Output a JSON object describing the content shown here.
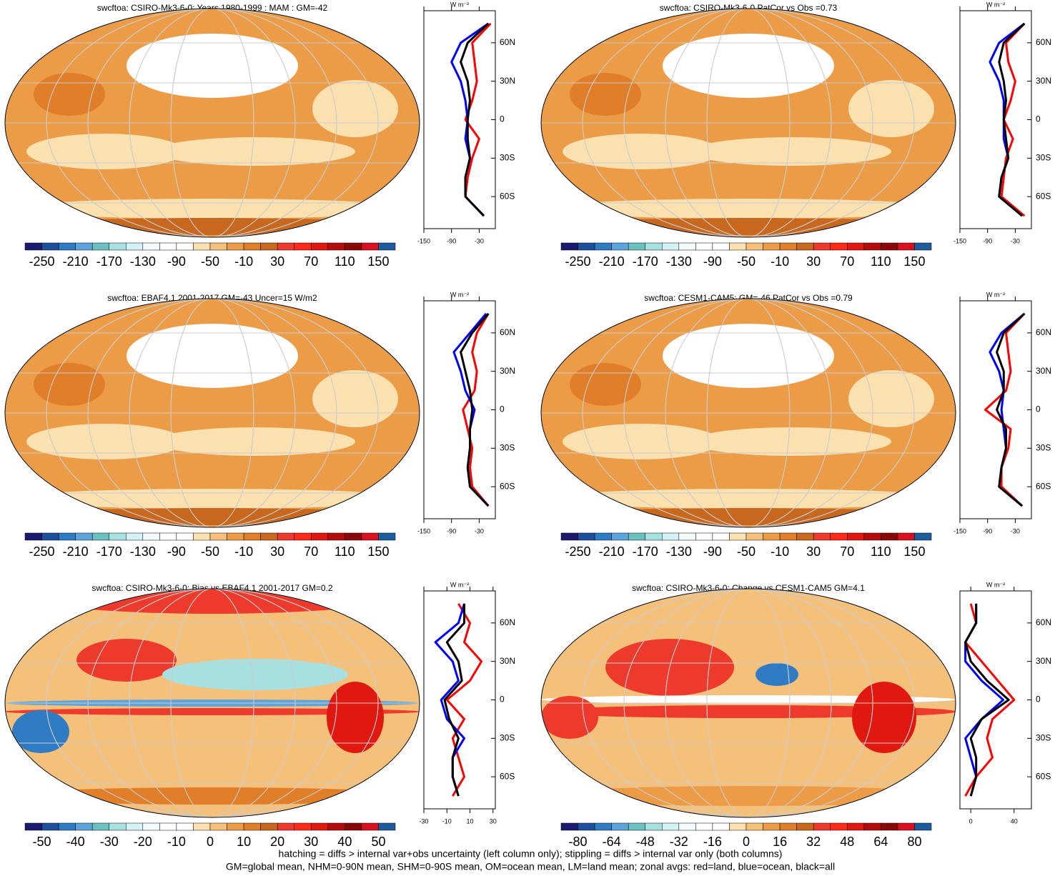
{
  "chart_data": [
    {
      "type": "map_panel",
      "title": "swcftoa: CSIRO-Mk3-6-0: Years 1980-1999 : MAM : GM=-42",
      "colorbar_ticks": [
        -250,
        -210,
        -170,
        -130,
        -90,
        -50,
        -10,
        30,
        70,
        110,
        150
      ],
      "zonal": {
        "units": "W m⁻²",
        "lat": [
          -75,
          -60,
          -45,
          -30,
          -15,
          0,
          15,
          30,
          45,
          60,
          75
        ],
        "xlim": [
          -150,
          5
        ],
        "ylim": [
          -85,
          85
        ],
        "xticks": [
          -150,
          -90,
          -30
        ],
        "yticks": [
          {
            "value": -60,
            "label": "60S"
          },
          {
            "value": -30,
            "label": "30S"
          },
          0,
          {
            "value": 30,
            "label": "30N"
          },
          {
            "value": 60,
            "label": "60N"
          }
        ],
        "series": [
          {
            "color": "#ff0000",
            "values": [
              -20,
              -60,
              -55,
              -45,
              -30,
              -60,
              -45,
              -35,
              -40,
              -45,
              -5
            ]
          },
          {
            "color": "#0000ff",
            "values": [
              -20,
              -60,
              -60,
              -50,
              -60,
              -55,
              -60,
              -70,
              -90,
              -70,
              -10
            ]
          },
          {
            "color": "#000000",
            "values": [
              -20,
              -60,
              -60,
              -50,
              -55,
              -55,
              -50,
              -55,
              -70,
              -55,
              -10
            ]
          }
        ]
      }
    },
    {
      "type": "map_panel",
      "title": "swcftoa: CSIRO-Mk3-6-0 PatCor vs Obs =0.73",
      "colorbar_ticks": [
        -250,
        -210,
        -170,
        -130,
        -90,
        -50,
        -10,
        30,
        70,
        110,
        150
      ],
      "zonal": {
        "units": "W m⁻²",
        "lat": [
          -75,
          -60,
          -45,
          -30,
          -15,
          0,
          15,
          30,
          45,
          60,
          75
        ],
        "xlim": [
          -150,
          5
        ],
        "ylim": [
          -85,
          85
        ],
        "xticks": [
          -150,
          -90,
          -30
        ],
        "yticks": [
          {
            "value": -60,
            "label": "60S"
          },
          {
            "value": -30,
            "label": "30S"
          },
          0,
          {
            "value": 30,
            "label": "30N"
          },
          {
            "value": 60,
            "label": "60N"
          }
        ],
        "series": [
          {
            "color": "#ff0000",
            "values": [
              -10,
              -60,
              -55,
              -50,
              -35,
              -55,
              -40,
              -30,
              -45,
              -50,
              -10
            ]
          },
          {
            "color": "#0000ff",
            "values": [
              -15,
              -65,
              -60,
              -45,
              -55,
              -55,
              -55,
              -65,
              -85,
              -65,
              -10
            ]
          },
          {
            "color": "#000000",
            "values": [
              -15,
              -65,
              -60,
              -45,
              -50,
              -55,
              -50,
              -55,
              -65,
              -55,
              -10
            ]
          }
        ]
      }
    },
    {
      "type": "map_panel",
      "title": "swcftoa: EBAF4.1 2001-2017 GM=-43 Uncer=15 W/m2",
      "colorbar_ticks": [
        -250,
        -210,
        -170,
        -130,
        -90,
        -50,
        -10,
        30,
        70,
        110,
        150
      ],
      "zonal": {
        "units": "W m⁻²",
        "lat": [
          -75,
          -60,
          -45,
          -30,
          -15,
          0,
          15,
          30,
          45,
          60,
          75
        ],
        "xlim": [
          -150,
          5
        ],
        "ylim": [
          -85,
          85
        ],
        "xticks": [
          -150,
          -90,
          -30
        ],
        "yticks": [
          {
            "value": -60,
            "label": "60S"
          },
          {
            "value": -30,
            "label": "30S"
          },
          0,
          {
            "value": 30,
            "label": "30N"
          },
          {
            "value": 60,
            "label": "60N"
          }
        ],
        "series": [
          {
            "color": "#ff0000",
            "values": [
              -10,
              -45,
              -50,
              -45,
              -55,
              -65,
              -40,
              -35,
              -45,
              -35,
              -10
            ]
          },
          {
            "color": "#0000ff",
            "values": [
              -10,
              -50,
              -55,
              -50,
              -50,
              -40,
              -60,
              -70,
              -85,
              -50,
              -15
            ]
          },
          {
            "color": "#000000",
            "values": [
              -10,
              -50,
              -55,
              -50,
              -50,
              -45,
              -50,
              -60,
              -70,
              -45,
              -10
            ]
          }
        ]
      }
    },
    {
      "type": "map_panel",
      "title": "swcftoa: CESM1-CAM5: GM=-46 PatCor vs Obs =0.79",
      "colorbar_ticks": [
        -250,
        -210,
        -170,
        -130,
        -90,
        -50,
        -10,
        30,
        70,
        110,
        150
      ],
      "zonal": {
        "units": "W m⁻²",
        "lat": [
          -75,
          -60,
          -45,
          -30,
          -15,
          0,
          15,
          30,
          45,
          60,
          75
        ],
        "xlim": [
          -150,
          5
        ],
        "ylim": [
          -85,
          85
        ],
        "xticks": [
          -150,
          -90,
          -30
        ],
        "yticks": [
          {
            "value": -60,
            "label": "60S"
          },
          {
            "value": -30,
            "label": "30S"
          },
          0,
          {
            "value": 30,
            "label": "30N"
          },
          {
            "value": 60,
            "label": "60N"
          }
        ],
        "series": [
          {
            "color": "#ff0000",
            "values": [
              -15,
              -60,
              -60,
              -45,
              -40,
              -95,
              -50,
              -40,
              -45,
              -50,
              -10
            ]
          },
          {
            "color": "#0000ff",
            "values": [
              -15,
              -65,
              -60,
              -50,
              -55,
              -60,
              -55,
              -65,
              -85,
              -60,
              -10
            ]
          },
          {
            "color": "#000000",
            "values": [
              -15,
              -65,
              -60,
              -50,
              -50,
              -70,
              -55,
              -55,
              -70,
              -55,
              -10
            ]
          }
        ]
      }
    },
    {
      "type": "map_panel",
      "title": "swcftoa: CSIRO-Mk3-6-0: Bias vs EBAF4.1 2001-2017 GM=0.2",
      "colorbar_ticks": [
        -50,
        -40,
        -30,
        -20,
        -10,
        0,
        10,
        20,
        30,
        40,
        50
      ],
      "zonal": {
        "units": "W m⁻²",
        "lat": [
          -75,
          -60,
          -45,
          -30,
          -15,
          0,
          15,
          30,
          45,
          60,
          75
        ],
        "xlim": [
          -30,
          32
        ],
        "ylim": [
          -85,
          85
        ],
        "xticks": [
          -30,
          -10,
          10,
          30
        ],
        "yticks": [
          {
            "value": -60,
            "label": "60S"
          },
          {
            "value": -30,
            "label": "30S"
          },
          0,
          {
            "value": 30,
            "label": "30N"
          },
          {
            "value": 60,
            "label": "60N"
          }
        ],
        "series": [
          {
            "color": "#ff0000",
            "values": [
              -5,
              5,
              0,
              -5,
              5,
              -10,
              10,
              20,
              5,
              10,
              0
            ]
          },
          {
            "color": "#0000ff",
            "values": [
              0,
              -5,
              -5,
              5,
              -10,
              -15,
              0,
              -5,
              -20,
              0,
              5
            ]
          },
          {
            "color": "#000000",
            "values": [
              0,
              -5,
              -5,
              0,
              -8,
              -12,
              3,
              0,
              -10,
              5,
              5
            ]
          }
        ]
      }
    },
    {
      "type": "map_panel",
      "title": "swcftoa: CSIRO-Mk3-6-0: Change vs CESM1-CAM5 GM=4.1",
      "colorbar_ticks": [
        -80,
        -64,
        -48,
        -32,
        -16,
        0,
        16,
        32,
        48,
        64,
        80
      ],
      "zonal": {
        "units": "W m⁻²",
        "lat": [
          -75,
          -60,
          -45,
          -30,
          -15,
          0,
          15,
          30,
          45,
          60,
          75
        ],
        "xlim": [
          -10,
          56
        ],
        "ylim": [
          -85,
          85
        ],
        "xticks": [
          0,
          40
        ],
        "yticks": [
          {
            "value": -60,
            "label": "60S"
          },
          {
            "value": -30,
            "label": "30S"
          },
          0,
          {
            "value": 30,
            "label": "30N"
          },
          {
            "value": 60,
            "label": "60N"
          }
        ],
        "series": [
          {
            "color": "#ff0000",
            "values": [
              -5,
              5,
              20,
              15,
              20,
              40,
              25,
              10,
              -5,
              5,
              0
            ]
          },
          {
            "color": "#0000ff",
            "values": [
              0,
              5,
              0,
              -5,
              10,
              30,
              10,
              -5,
              -5,
              5,
              5
            ]
          },
          {
            "color": "#000000",
            "values": [
              0,
              5,
              5,
              0,
              10,
              35,
              15,
              0,
              -5,
              5,
              5
            ]
          }
        ]
      }
    }
  ],
  "palette": [
    "#1a1a6e",
    "#1e4f9c",
    "#2f7bc4",
    "#5ea4dc",
    "#6cc0c0",
    "#a6e0e0",
    "#d4f2f6",
    "#f4fbfb",
    "#ffffff",
    "#ffffff",
    "#fbe0b0",
    "#f5c07a",
    "#ec9c47",
    "#e07e2a",
    "#c8681e",
    "#ee3a2c",
    "#ff2a1a",
    "#e01810",
    "#b40c0c",
    "#8a0808",
    "#d81020",
    "#1e5c9c"
  ],
  "footer": [
    "hatching = diffs > internal var+obs uncertainty (left column only); stippling = diffs > internal var only (both columns)",
    "GM=global mean, NHM=0-90N mean, SHM=0-90S mean, OM=ocean mean, LM=land mean; zonal avgs: red=land, blue=ocean, black=all"
  ]
}
